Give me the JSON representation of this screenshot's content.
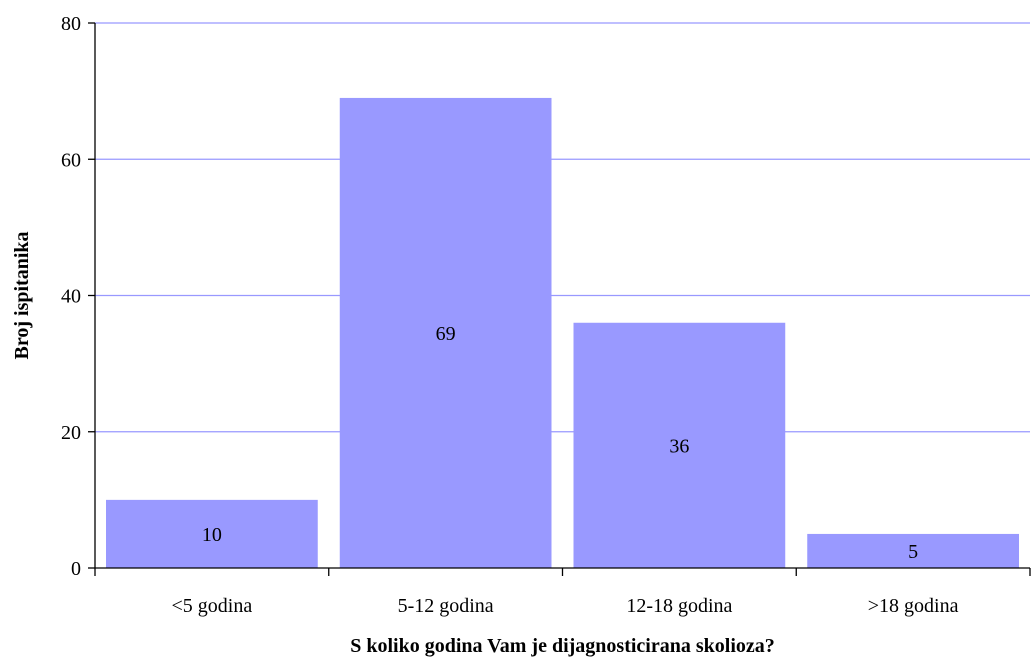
{
  "chart_data": {
    "type": "bar",
    "categories": [
      "<5 godina",
      "5-12 godina",
      "12-18 godina",
      ">18 godina"
    ],
    "values": [
      10,
      69,
      36,
      5
    ],
    "data_labels": [
      "10",
      "69",
      "36",
      "5"
    ],
    "title": "",
    "xlabel": "S koliko godina Vam je dijagnosticirana skolioza?",
    "ylabel": "Broj ispitanika",
    "ylim": [
      0,
      80
    ],
    "yticks": [
      0,
      20,
      40,
      60,
      80
    ],
    "ytick_labels": [
      "0",
      "20",
      "40",
      "60",
      "80"
    ],
    "grid": true,
    "legend": "none",
    "colors": {
      "bar": "#9999ff",
      "grid": "#9999ff",
      "axis": "#000000"
    }
  }
}
